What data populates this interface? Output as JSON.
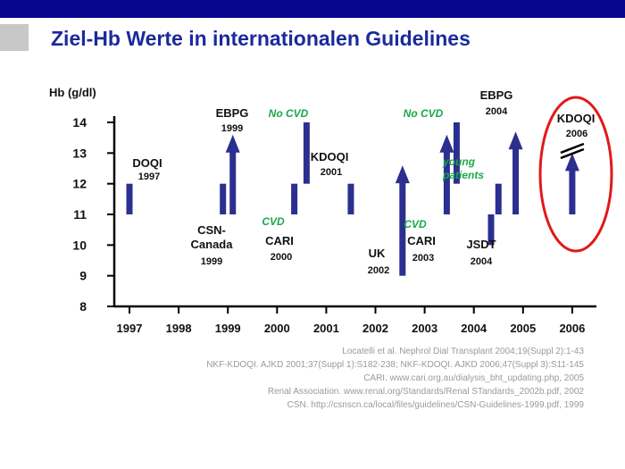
{
  "title": "Ziel-Hb Werte in internationalen Guidelines",
  "references": [
    "Locatelli et al. Nephrol Dial Transplant 2004;19(Suppl 2):1-43",
    "NKF-KDOQI. AJKD 2001;37(Suppl 1):S182-238; NKF-KDOQI. AJKD 2006;47(Suppl 3):S11-145",
    "CARI. www.cari.org.au/dialysis_bht_updating.php, 2005",
    "Renal Association. www.renal.org/Standards/Renal STandards_2002b.pdf, 2002",
    "CSN. http://csnscn.ca/local/files/guidelines/CSN-Guidelines-1999.pdf, 1999"
  ],
  "colors": {
    "bar": "#2b2f8f",
    "header": "#05058f",
    "title": "#1a2a9c",
    "highlight": "#e01a1a",
    "annotation": "#1aa84a"
  },
  "chart_data": {
    "type": "bar",
    "ylabel": "Hb (g/dl)",
    "ylim": [
      8,
      14
    ],
    "yticks": [
      8,
      9,
      10,
      11,
      12,
      13,
      14
    ],
    "xticks": [
      "1997",
      "1998",
      "1999",
      "2000",
      "2001",
      "2002",
      "2003",
      "2004",
      "2005",
      "2006"
    ],
    "xlim": [
      1997,
      2006.3
    ],
    "guidelines": [
      {
        "label": "DOQI",
        "sublabel": "1997",
        "x": 1997.0,
        "low": 11,
        "high": 12,
        "arrow": false
      },
      {
        "label": "CSN-",
        "sublabel2": "Canada",
        "sublabel": "1999",
        "x": 1998.9,
        "low": 11,
        "high": 12,
        "arrow": false
      },
      {
        "label": "EBPG",
        "sublabel": "1999",
        "x": 1999.1,
        "low": 11,
        "high": 13.6,
        "arrow": true
      },
      {
        "label": "CARI",
        "sublabel": "2000",
        "annotation": "CVD",
        "x": 2000.35,
        "low": 11,
        "high": 12,
        "arrow": false
      },
      {
        "label": "",
        "annotation": "No CVD",
        "x": 2000.6,
        "low": 12,
        "high": 14,
        "arrow": false
      },
      {
        "label": "KDOQI",
        "sublabel": "2001",
        "x": 2001.5,
        "low": 11,
        "high": 12,
        "arrow": false
      },
      {
        "label": "UK",
        "sublabel": "2002",
        "x": 2002.55,
        "low": 9,
        "high": 12.6,
        "arrow": true
      },
      {
        "label": "CARI",
        "sublabel": "2003",
        "annotation": "CVD",
        "x": 2003.45,
        "low": 11,
        "high": 13.6,
        "arrow": true
      },
      {
        "label": "",
        "annotation": "No CVD",
        "x": 2003.65,
        "low": 12,
        "high": 14,
        "arrow": false
      },
      {
        "label": "JSDT",
        "sublabel": "2004",
        "x": 2004.35,
        "low": 10,
        "high": 11,
        "arrow": false
      },
      {
        "label": "",
        "annotation": "young patients",
        "x": 2004.5,
        "low": 11,
        "high": 12,
        "arrow": false
      },
      {
        "label": "EBPG",
        "sublabel": "2004",
        "x": 2004.85,
        "low": 11,
        "high": 13.7,
        "arrow": true
      },
      {
        "label": "KDOQI",
        "sublabel": "2006",
        "x": 2006.0,
        "low": 11,
        "high": 13,
        "arrow": true,
        "highlighted": true
      }
    ],
    "annotation_young_1": "young",
    "annotation_young_2": "patients",
    "grid": false,
    "legend": "none"
  }
}
